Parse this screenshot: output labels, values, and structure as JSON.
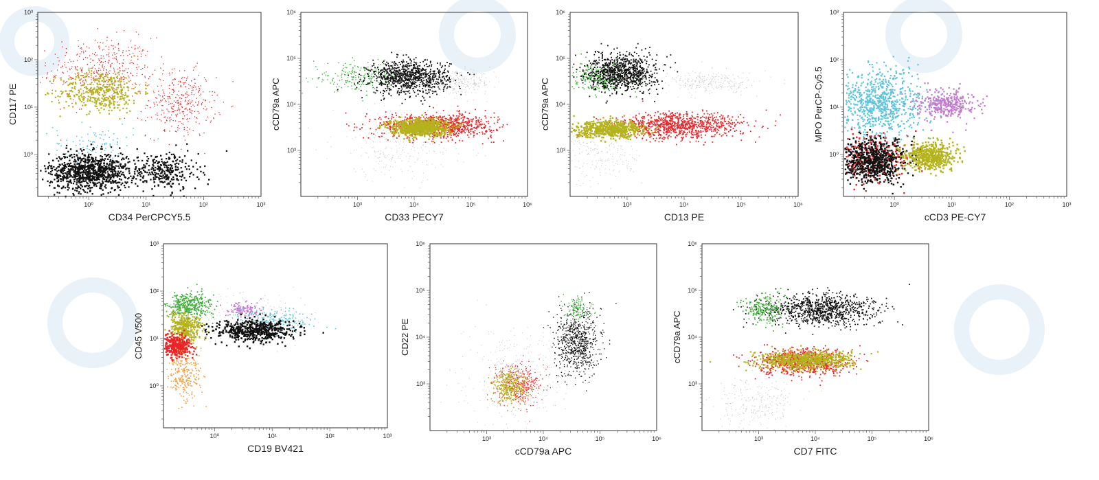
{
  "colors": {
    "red": "#e8262a",
    "black": "#111111",
    "olive": "#b5b31c",
    "green": "#3fae3a",
    "cyan": "#5ec4dc",
    "magenta": "#c27ad0",
    "grey": "#c9c9c9",
    "orange": "#f0a040",
    "watermark": "#dcebf5"
  },
  "chart_data": [
    {
      "type": "scatter",
      "xlabel": "CD34 PerCPCY5.5",
      "ylabel": "CD117 PE",
      "scale": "log",
      "xlim": [
        0.13,
        1000
      ],
      "ylim": [
        0.13,
        1000
      ],
      "xticks": [
        {
          "v": 1,
          "label": "10⁰"
        },
        {
          "v": 10,
          "label": "10¹"
        },
        {
          "v": 100,
          "label": "10²"
        },
        {
          "v": 1000,
          "label": "10³"
        }
      ],
      "yticks": [
        {
          "v": 1,
          "label": "10⁰"
        },
        {
          "v": 10,
          "label": "10¹"
        },
        {
          "v": 100,
          "label": "10²"
        },
        {
          "v": 1000,
          "label": "10³"
        }
      ],
      "populations": [
        {
          "color": "red",
          "center": [
            1.6,
            60
          ],
          "spread": [
            0.45,
            0.35
          ],
          "count": 450,
          "size": 1.3
        },
        {
          "color": "red",
          "center": [
            40,
            12
          ],
          "spread": [
            0.3,
            0.35
          ],
          "count": 350,
          "size": 1.3
        },
        {
          "color": "olive",
          "center": [
            1.6,
            22
          ],
          "spread": [
            0.35,
            0.22
          ],
          "count": 380,
          "size": 2.2
        },
        {
          "color": "cyan",
          "center": [
            1.2,
            1.8
          ],
          "spread": [
            0.35,
            0.2
          ],
          "count": 90,
          "size": 1.6
        },
        {
          "color": "black",
          "center": [
            1.0,
            0.45
          ],
          "spread": [
            0.35,
            0.2
          ],
          "count": 900,
          "size": 2.3
        },
        {
          "color": "black",
          "center": [
            20,
            0.45
          ],
          "spread": [
            0.3,
            0.2
          ],
          "count": 300,
          "size": 2.3
        }
      ]
    },
    {
      "type": "scatter",
      "xlabel": "CD33 PECY7",
      "ylabel": "cCD79a APC",
      "scale": "log",
      "xlim": [
        100,
        1000000
      ],
      "ylim": [
        100,
        1000000
      ],
      "xticks": [
        {
          "v": 1000,
          "label": "10³"
        },
        {
          "v": 10000,
          "label": "10⁴"
        },
        {
          "v": 100000,
          "label": "10⁵"
        },
        {
          "v": 1000000,
          "label": "10⁶"
        }
      ],
      "yticks": [
        {
          "v": 1000,
          "label": "10³"
        },
        {
          "v": 10000,
          "label": "10⁴"
        },
        {
          "v": 100000,
          "label": "10⁵"
        },
        {
          "v": 1000000,
          "label": "10⁶"
        }
      ],
      "populations": [
        {
          "color": "grey",
          "center": [
            6000,
            1500
          ],
          "spread": [
            0.6,
            0.4
          ],
          "count": 300,
          "size": 1.1
        },
        {
          "color": "grey",
          "center": [
            60000,
            30000
          ],
          "spread": [
            0.3,
            0.12
          ],
          "count": 250,
          "size": 1.1
        },
        {
          "color": "green",
          "center": [
            1000,
            40000
          ],
          "spread": [
            0.4,
            0.15
          ],
          "count": 220,
          "size": 1.4
        },
        {
          "color": "black",
          "center": [
            8000,
            40000
          ],
          "spread": [
            0.35,
            0.18
          ],
          "count": 900,
          "size": 1.8
        },
        {
          "color": "red",
          "center": [
            25000,
            3500
          ],
          "spread": [
            0.5,
            0.13
          ],
          "count": 900,
          "size": 1.8
        },
        {
          "color": "olive",
          "center": [
            12000,
            3300
          ],
          "spread": [
            0.25,
            0.09
          ],
          "count": 700,
          "size": 2.4
        }
      ]
    },
    {
      "type": "scatter",
      "xlabel": "CD13 PE",
      "ylabel": "cCD79a APC",
      "scale": "log",
      "xlim": [
        100,
        1000000
      ],
      "ylim": [
        100,
        1000000
      ],
      "xticks": [
        {
          "v": 1000,
          "label": "10³"
        },
        {
          "v": 10000,
          "label": "10⁴"
        },
        {
          "v": 100000,
          "label": "10⁵"
        },
        {
          "v": 1000000,
          "label": "10⁶"
        }
      ],
      "yticks": [
        {
          "v": 1000,
          "label": "10³"
        },
        {
          "v": 10000,
          "label": "10⁴"
        },
        {
          "v": 100000,
          "label": "10⁵"
        },
        {
          "v": 1000000,
          "label": "10⁶"
        }
      ],
      "populations": [
        {
          "color": "grey",
          "center": [
            300,
            900
          ],
          "spread": [
            0.4,
            0.35
          ],
          "count": 250,
          "size": 1.1
        },
        {
          "color": "grey",
          "center": [
            30000,
            30000
          ],
          "spread": [
            0.4,
            0.12
          ],
          "count": 250,
          "size": 1.1
        },
        {
          "color": "green",
          "center": [
            300,
            40000
          ],
          "spread": [
            0.25,
            0.15
          ],
          "count": 260,
          "size": 1.6
        },
        {
          "color": "black",
          "center": [
            800,
            50000
          ],
          "spread": [
            0.3,
            0.2
          ],
          "count": 900,
          "size": 1.8
        },
        {
          "color": "red",
          "center": [
            8000,
            3500
          ],
          "spread": [
            0.55,
            0.14
          ],
          "count": 900,
          "size": 1.8
        },
        {
          "color": "olive",
          "center": [
            500,
            3000
          ],
          "spread": [
            0.3,
            0.09
          ],
          "count": 600,
          "size": 2.4
        }
      ]
    },
    {
      "type": "scatter",
      "xlabel": "cCD3 PE-CY7",
      "ylabel": "MPO PerCP-Cy5.5",
      "scale": "log",
      "xlim": [
        0.13,
        1000
      ],
      "ylim": [
        0.13,
        1000
      ],
      "xticks": [
        {
          "v": 1,
          "label": "10⁰"
        },
        {
          "v": 10,
          "label": "10¹"
        },
        {
          "v": 100,
          "label": "10²"
        },
        {
          "v": 1000,
          "label": "10³"
        }
      ],
      "yticks": [
        {
          "v": 1,
          "label": "10⁰"
        },
        {
          "v": 10,
          "label": "10¹"
        },
        {
          "v": 100,
          "label": "10²"
        },
        {
          "v": 1000,
          "label": "10³"
        }
      ],
      "populations": [
        {
          "color": "cyan",
          "center": [
            0.55,
            12
          ],
          "spread": [
            0.35,
            0.38
          ],
          "count": 800,
          "size": 2.2
        },
        {
          "color": "magenta",
          "center": [
            8,
            12
          ],
          "spread": [
            0.25,
            0.15
          ],
          "count": 350,
          "size": 2.2
        },
        {
          "color": "red",
          "center": [
            0.4,
            0.9
          ],
          "spread": [
            0.35,
            0.25
          ],
          "count": 300,
          "size": 2.4
        },
        {
          "color": "black",
          "center": [
            0.4,
            0.75
          ],
          "spread": [
            0.3,
            0.22
          ],
          "count": 700,
          "size": 2.4
        },
        {
          "color": "olive",
          "center": [
            4,
            0.95
          ],
          "spread": [
            0.22,
            0.14
          ],
          "count": 550,
          "size": 2.4
        }
      ]
    },
    {
      "type": "scatter",
      "xlabel": "CD19 BV421",
      "ylabel": "CD45 V500",
      "scale": "log",
      "xlim": [
        0.13,
        1000
      ],
      "ylim": [
        0.13,
        1000
      ],
      "xticks": [
        {
          "v": 1,
          "label": "10⁰"
        },
        {
          "v": 10,
          "label": "10¹"
        },
        {
          "v": 100,
          "label": "10²"
        },
        {
          "v": 1000,
          "label": "10³"
        }
      ],
      "yticks": [
        {
          "v": 1,
          "label": "10⁰"
        },
        {
          "v": 10,
          "label": "10¹"
        },
        {
          "v": 100,
          "label": "10²"
        },
        {
          "v": 1000,
          "label": "10³"
        }
      ],
      "populations": [
        {
          "color": "grey",
          "center": [
            3,
            30
          ],
          "spread": [
            0.6,
            0.3
          ],
          "count": 200,
          "size": 1.1
        },
        {
          "color": "green",
          "center": [
            0.35,
            50
          ],
          "spread": [
            0.2,
            0.14
          ],
          "count": 350,
          "size": 1.8
        },
        {
          "color": "magenta",
          "center": [
            3,
            40
          ],
          "spread": [
            0.15,
            0.08
          ],
          "count": 120,
          "size": 1.8
        },
        {
          "color": "cyan",
          "center": [
            10,
            25
          ],
          "spread": [
            0.35,
            0.12
          ],
          "count": 200,
          "size": 1.6
        },
        {
          "color": "black",
          "center": [
            5,
            15
          ],
          "spread": [
            0.35,
            0.12
          ],
          "count": 550,
          "size": 2.4
        },
        {
          "color": "olive",
          "center": [
            0.3,
            18
          ],
          "spread": [
            0.15,
            0.14
          ],
          "count": 350,
          "size": 2.2
        },
        {
          "color": "red",
          "center": [
            0.22,
            7
          ],
          "spread": [
            0.12,
            0.12
          ],
          "count": 350,
          "size": 2.4
        },
        {
          "color": "orange",
          "center": [
            0.3,
            1.8
          ],
          "spread": [
            0.15,
            0.25
          ],
          "count": 250,
          "size": 1.6
        }
      ]
    },
    {
      "type": "scatter",
      "xlabel": "cCD79a APC",
      "ylabel": "CD22 PE",
      "scale": "log",
      "xlim": [
        100,
        1000000
      ],
      "ylim": [
        100,
        1000000
      ],
      "xticks": [
        {
          "v": 1000,
          "label": "10³"
        },
        {
          "v": 10000,
          "label": "10⁴"
        },
        {
          "v": 100000,
          "label": "10⁵"
        },
        {
          "v": 1000000,
          "label": "10⁶"
        }
      ],
      "yticks": [
        {
          "v": 1000,
          "label": "10³"
        },
        {
          "v": 10000,
          "label": "10⁴"
        },
        {
          "v": 100000,
          "label": "10⁵"
        },
        {
          "v": 1000000,
          "label": "10⁶"
        }
      ],
      "populations": [
        {
          "color": "grey",
          "center": [
            3000,
            1500
          ],
          "spread": [
            0.5,
            0.5
          ],
          "count": 300,
          "size": 1.1
        },
        {
          "color": "red",
          "center": [
            3500,
            1000
          ],
          "spread": [
            0.2,
            0.22
          ],
          "count": 400,
          "size": 1.3
        },
        {
          "color": "olive",
          "center": [
            2500,
            900
          ],
          "spread": [
            0.15,
            0.17
          ],
          "count": 300,
          "size": 1.6
        },
        {
          "color": "black",
          "center": [
            40000,
            8000
          ],
          "spread": [
            0.2,
            0.35
          ],
          "count": 700,
          "size": 1.4
        },
        {
          "color": "green",
          "center": [
            40000,
            40000
          ],
          "spread": [
            0.12,
            0.12
          ],
          "count": 120,
          "size": 1.4
        }
      ]
    },
    {
      "type": "scatter",
      "xlabel": "CD7 FITC",
      "ylabel": "cCD79a APC",
      "scale": "log",
      "xlim": [
        100,
        1000000
      ],
      "ylim": [
        100,
        1000000
      ],
      "xticks": [
        {
          "v": 1000,
          "label": "10³"
        },
        {
          "v": 10000,
          "label": "10⁴"
        },
        {
          "v": 100000,
          "label": "10⁵"
        },
        {
          "v": 1000000,
          "label": "10⁶"
        }
      ],
      "yticks": [
        {
          "v": 1000,
          "label": "10³"
        },
        {
          "v": 10000,
          "label": "10⁴"
        },
        {
          "v": 100000,
          "label": "10⁵"
        },
        {
          "v": 1000000,
          "label": "10⁶"
        }
      ],
      "populations": [
        {
          "color": "grey",
          "center": [
            800,
            400
          ],
          "spread": [
            0.35,
            0.3
          ],
          "count": 250,
          "size": 1.1
        },
        {
          "color": "black",
          "center": [
            12000,
            40000
          ],
          "spread": [
            0.5,
            0.17
          ],
          "count": 900,
          "size": 1.7
        },
        {
          "color": "green",
          "center": [
            1200,
            40000
          ],
          "spread": [
            0.17,
            0.16
          ],
          "count": 220,
          "size": 1.7
        },
        {
          "color": "red",
          "center": [
            6000,
            3000
          ],
          "spread": [
            0.4,
            0.14
          ],
          "count": 800,
          "size": 1.8
        },
        {
          "color": "olive",
          "center": [
            6000,
            3300
          ],
          "spread": [
            0.4,
            0.1
          ],
          "count": 700,
          "size": 2.2
        }
      ]
    }
  ]
}
